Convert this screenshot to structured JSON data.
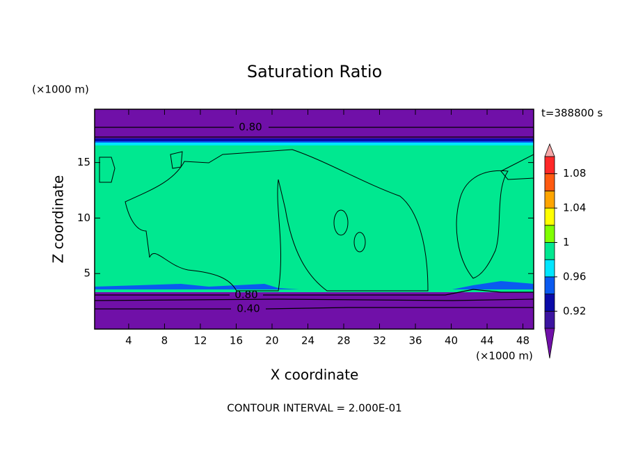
{
  "chart_data": {
    "type": "contour",
    "title": "Saturation Ratio",
    "x_label": "X coordinate",
    "y_label": "Z coordinate",
    "x_unit": "(×1000 m)",
    "y_unit": "(×1000 m)",
    "time_label": "t=388800 s",
    "footer": "CONTOUR INTERVAL = 2.000E-01",
    "xlim": [
      0.2,
      49.2
    ],
    "xticks": [
      4,
      8,
      12,
      16,
      20,
      24,
      28,
      32,
      36,
      40,
      44,
      48
    ],
    "ylim": [
      0,
      19.8
    ],
    "yticks": [
      5,
      10,
      15
    ],
    "levels": [
      0.9,
      0.92,
      0.94,
      0.96,
      0.98,
      1,
      1.02,
      1.04,
      1.06,
      1.08,
      1.1
    ],
    "colorbar_ticks": [
      0.92,
      0.96,
      1,
      1.04,
      1.08
    ],
    "colors": [
      "#7010a8",
      "#3c14a0",
      "#0a0aa8",
      "#0a5af0",
      "#00e6ff",
      "#00e890",
      "#80ff00",
      "#ffff00",
      "#ffa500",
      "#ff5a10",
      "#ff2828",
      "#f4a8a8"
    ],
    "contour_labels": [
      {
        "value": 0.8,
        "label": "0.80"
      },
      {
        "value": 0.8,
        "label": "0.80"
      },
      {
        "value": 0.4,
        "label": "0.40"
      }
    ]
  }
}
